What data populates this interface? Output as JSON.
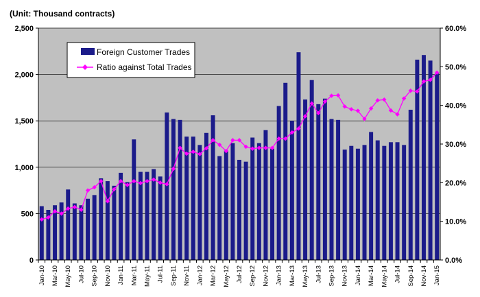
{
  "chart_data": {
    "type": "bar-line",
    "unit_label": "(Unit: Thousand contracts)",
    "y_left": {
      "min": 0,
      "max": 2500,
      "ticks": [
        "0",
        "500",
        "1,000",
        "1,500",
        "2,000",
        "2,500"
      ],
      "tick_values": [
        0,
        500,
        1000,
        1500,
        2000,
        2500
      ]
    },
    "y_right": {
      "min": 0,
      "max": 60,
      "ticks": [
        "0.0%",
        "10.0%",
        "20.0%",
        "30.0%",
        "40.0%",
        "50.0%",
        "60.0%"
      ],
      "tick_values": [
        0,
        10,
        20,
        30,
        40,
        50,
        60
      ]
    },
    "x_tick_labels": [
      "Jan-10",
      "Mar-10",
      "May-10",
      "Jul-10",
      "Sep-10",
      "Nov-10",
      "Jan-11",
      "Mar-11",
      "May-11",
      "Jul-11",
      "Sep-11",
      "Nov-11",
      "Jan-12",
      "Mar-12",
      "May-12",
      "Jul-12",
      "Sep-12",
      "Nov-12",
      "Jan-13",
      "Mar-13",
      "May-13",
      "Jul-13",
      "Sep-13",
      "Nov-13",
      "Jan-14",
      "Mar-14",
      "May-14",
      "Jul-14",
      "Sep-14",
      "Nov-14",
      "Jan-15"
    ],
    "series": [
      {
        "name": "Foreign Customer Trades",
        "kind": "bar",
        "axis": "left",
        "color": "#1b1b8a",
        "values": [
          580,
          540,
          590,
          620,
          760,
          610,
          590,
          660,
          700,
          880,
          850,
          800,
          940,
          840,
          1300,
          950,
          950,
          980,
          900,
          1590,
          1520,
          1510,
          1330,
          1330,
          1240,
          1370,
          1560,
          1120,
          1180,
          1260,
          1080,
          1060,
          1320,
          1260,
          1400,
          1200,
          1660,
          1910,
          1500,
          2240,
          1730,
          1940,
          1680,
          1740,
          1520,
          1510,
          1190,
          1230,
          1200,
          1240,
          1380,
          1290,
          1230,
          1270,
          1270,
          1240,
          1620,
          2160,
          2210,
          2150,
          2010
        ]
      },
      {
        "name": "Ratio against Total Trades",
        "kind": "line",
        "axis": "right",
        "color": "#ff00ff",
        "values": [
          10.5,
          11,
          12.6,
          12,
          13.3,
          13.7,
          13,
          18,
          18.8,
          20.4,
          15.2,
          18.3,
          20.4,
          19.4,
          20.4,
          19.9,
          20.4,
          20.8,
          20,
          19.6,
          23.6,
          29,
          27.5,
          28,
          27.4,
          28.9,
          31,
          29.8,
          28.2,
          31,
          31,
          29.3,
          28.8,
          29,
          29,
          29,
          31.4,
          31.4,
          33,
          34,
          37.2,
          40.5,
          38,
          41,
          42.5,
          42.6,
          39.7,
          39,
          38.6,
          36.5,
          39.2,
          41.3,
          41.5,
          38.7,
          37.7,
          41.8,
          43.8,
          43.6,
          46.2,
          46.6,
          48.5
        ]
      }
    ],
    "legend_position": "top-left",
    "plot_background": "#c0c0c0",
    "grid": "horizontal"
  }
}
